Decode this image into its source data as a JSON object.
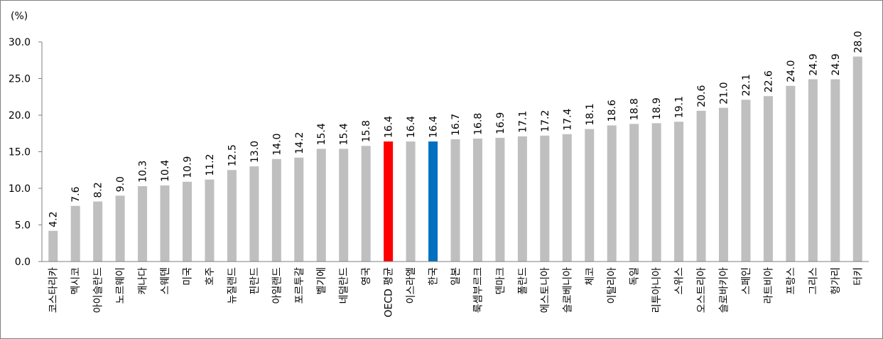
{
  "chart_data": {
    "type": "bar",
    "unit_label": "(%)",
    "ylim": [
      0,
      30
    ],
    "yticks": [
      "0.0",
      "5.0",
      "10.0",
      "15.0",
      "20.0",
      "25.0",
      "30.0"
    ],
    "grid": false,
    "legend": "none",
    "categories": [
      "코스타리카",
      "멕시코",
      "아이슬란드",
      "노르웨이",
      "캐나다",
      "스웨덴",
      "미국",
      "호주",
      "뉴질랜드",
      "핀란드",
      "아일랜드",
      "포르투갈",
      "벨기에",
      "네덜란드",
      "영국",
      "OECD 평균",
      "이스라엘",
      "한국",
      "일본",
      "룩셈부르크",
      "덴마크",
      "폴란드",
      "에스토니아",
      "슬로베니아",
      "체코",
      "이탈리아",
      "독일",
      "리투아니아",
      "스위스",
      "오스트리아",
      "슬로바키아",
      "스페인",
      "라트비아",
      "프랑스",
      "그리스",
      "헝가리",
      "터키"
    ],
    "values": [
      4.2,
      7.6,
      8.2,
      9.0,
      10.3,
      10.4,
      10.9,
      11.2,
      12.5,
      13.0,
      14.0,
      14.2,
      15.4,
      15.4,
      15.8,
      16.4,
      16.4,
      16.4,
      16.7,
      16.8,
      16.9,
      17.1,
      17.2,
      17.4,
      18.1,
      18.6,
      18.8,
      18.9,
      19.1,
      20.6,
      21.0,
      22.1,
      22.6,
      24.0,
      24.9,
      24.9,
      28.0
    ],
    "value_labels": [
      "4.2",
      "7.6",
      "8.2",
      "9.0",
      "10.3",
      "10.4",
      "10.9",
      "11.2",
      "12.5",
      "13.0",
      "14.0",
      "14.2",
      "15.4",
      "15.4",
      "15.8",
      "16.4",
      "16.4",
      "16.4",
      "16.7",
      "16.8",
      "16.9",
      "17.1",
      "17.2",
      "17.4",
      "18.1",
      "18.6",
      "18.8",
      "18.9",
      "19.1",
      "20.6",
      "21.0",
      "22.1",
      "22.6",
      "24.0",
      "24.9",
      "24.9",
      "28.0"
    ],
    "colors": {
      "default": "#bfbfbf",
      "OECD 평균": "#ff0000",
      "한국": "#0070c0",
      "axis": "#7f7f7f"
    }
  }
}
